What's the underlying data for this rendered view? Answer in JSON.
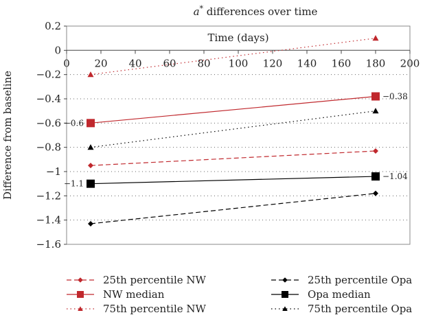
{
  "chart_data": {
    "type": "line",
    "title_var": "a",
    "title_sup": "*",
    "title_rest": " differences over time",
    "xlabel": "Time (days)",
    "ylabel": "Difference from baseline",
    "xlim": [
      0,
      200
    ],
    "ylim": [
      -1.6,
      0.2
    ],
    "xticks": [
      "0",
      "20",
      "40",
      "60",
      "80",
      "100",
      "120",
      "140",
      "160",
      "180",
      "200"
    ],
    "yticks": [
      "0.2",
      "0",
      "−0.2",
      "−0.4",
      "−0.6",
      "−0.8",
      "−1",
      "−1.2",
      "−1.4",
      "−1.6"
    ],
    "x": [
      14,
      180
    ],
    "grid": "horizontal-dotted",
    "legend_position": "bottom",
    "series": [
      {
        "name": "25th percentile NW",
        "values": [
          -0.95,
          -0.83
        ],
        "color": "#c0282d",
        "dash": "dashed",
        "marker": "diamond"
      },
      {
        "name": "25th percentile Opa",
        "values": [
          -1.43,
          -1.18
        ],
        "color": "#000000",
        "dash": "dashed",
        "marker": "diamond"
      },
      {
        "name": "NW median",
        "values": [
          -0.6,
          -0.38
        ],
        "color": "#c0282d",
        "dash": "solid",
        "marker": "square",
        "labels": [
          "−0.6",
          "−0.38"
        ]
      },
      {
        "name": "Opa median",
        "values": [
          -1.1,
          -1.04
        ],
        "color": "#000000",
        "dash": "solid",
        "marker": "square",
        "labels": [
          "−1.1",
          "−1.04"
        ]
      },
      {
        "name": "75th percentile NW",
        "values": [
          -0.2,
          0.1
        ],
        "color": "#c0282d",
        "dash": "dotted",
        "marker": "triangle"
      },
      {
        "name": "75th percentile Opa",
        "values": [
          -0.8,
          -0.5
        ],
        "color": "#000000",
        "dash": "dotted",
        "marker": "triangle"
      }
    ]
  }
}
